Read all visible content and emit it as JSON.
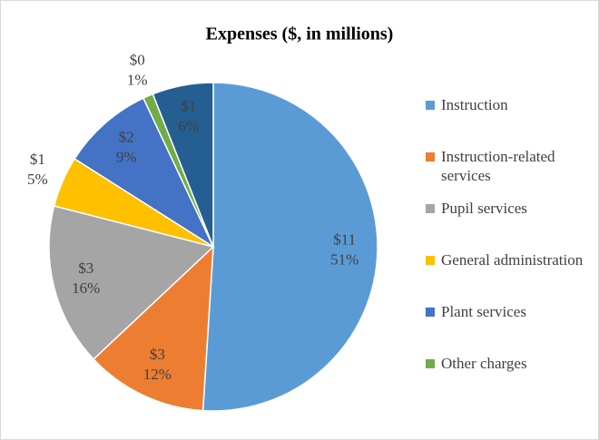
{
  "chart_data": {
    "type": "pie",
    "title": "Expenses ($, in millions)",
    "categories": [
      "Instruction",
      "Instruction-related services",
      "Pupil services",
      "General administration",
      "Plant services",
      "Other charges",
      null
    ],
    "values": [
      51,
      12,
      16,
      5,
      9,
      1,
      6
    ],
    "value_labels": [
      "51%",
      "12%",
      "16%",
      "5%",
      "9%",
      "1%",
      "6%"
    ],
    "amounts": [
      11,
      3,
      3,
      1,
      2,
      0,
      1
    ],
    "amount_labels": [
      "$11",
      "$3",
      "$3",
      "$1",
      "$2",
      "$0",
      "$1"
    ],
    "colors": [
      "#5b9bd5",
      "#ed7d31",
      "#a5a5a5",
      "#ffc000",
      "#4472c4",
      "#70ad47",
      "#255e91"
    ],
    "legend": "right"
  }
}
